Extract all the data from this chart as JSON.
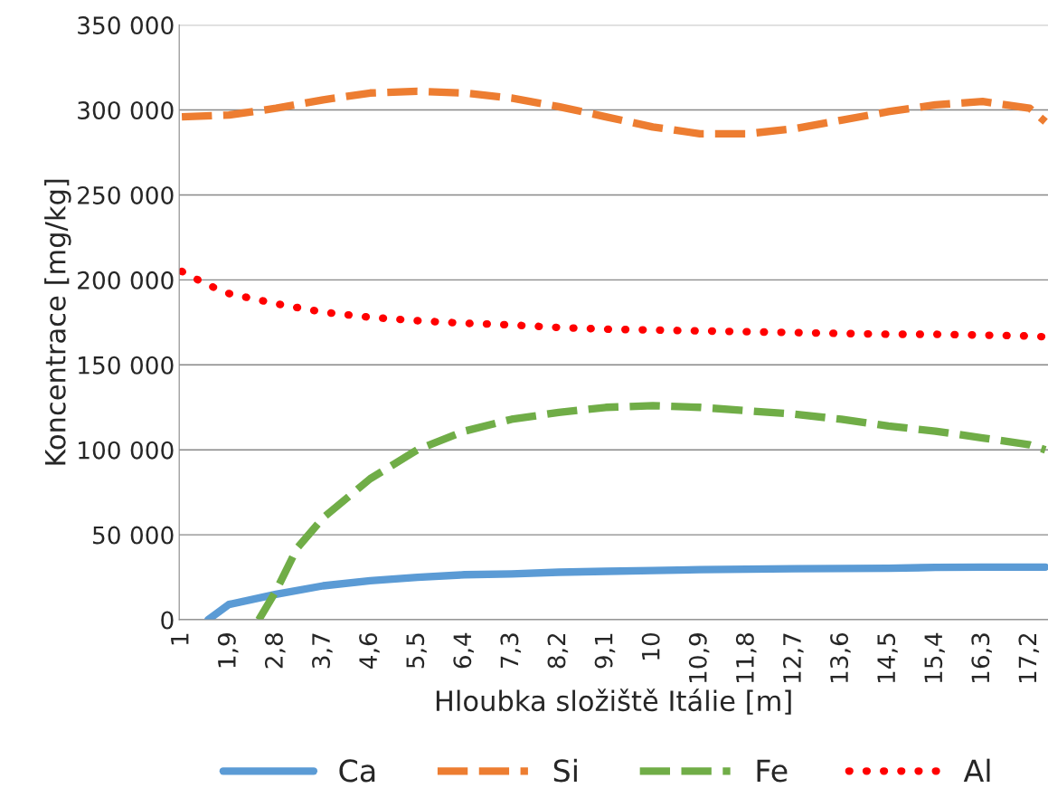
{
  "chart_data": {
    "type": "line",
    "xlabel": "Hloubka složiště Itálie [m]",
    "ylabel": "Koncentrace [mg/kg]",
    "xlim": [
      0.95,
      17.55
    ],
    "ylim": [
      0,
      350000
    ],
    "xticks": [
      {
        "value": 1,
        "label": "1"
      },
      {
        "value": 1.9,
        "label": "1,9"
      },
      {
        "value": 2.8,
        "label": "2,8"
      },
      {
        "value": 3.7,
        "label": "3,7"
      },
      {
        "value": 4.6,
        "label": "4,6"
      },
      {
        "value": 5.5,
        "label": "5,5"
      },
      {
        "value": 6.4,
        "label": "6,4"
      },
      {
        "value": 7.3,
        "label": "7,3"
      },
      {
        "value": 8.2,
        "label": "8,2"
      },
      {
        "value": 9.1,
        "label": "9,1"
      },
      {
        "value": 10,
        "label": "10"
      },
      {
        "value": 10.9,
        "label": "10,9"
      },
      {
        "value": 11.8,
        "label": "11,8"
      },
      {
        "value": 12.7,
        "label": "12,7"
      },
      {
        "value": 13.6,
        "label": "13,6"
      },
      {
        "value": 14.5,
        "label": "14,5"
      },
      {
        "value": 15.4,
        "label": "15,4"
      },
      {
        "value": 16.3,
        "label": "16,3"
      },
      {
        "value": 17.2,
        "label": "17,2"
      }
    ],
    "yticks": [
      {
        "value": 0,
        "label": "0"
      },
      {
        "value": 50000,
        "label": "50 000"
      },
      {
        "value": 100000,
        "label": "100 000"
      },
      {
        "value": 150000,
        "label": "150 000"
      },
      {
        "value": 200000,
        "label": "200 000"
      },
      {
        "value": 250000,
        "label": "250 000"
      },
      {
        "value": 300000,
        "label": "300 000"
      },
      {
        "value": 350000,
        "label": "350 000"
      }
    ],
    "grid": "y",
    "legend": "bottom",
    "marker": "none",
    "series": [
      {
        "name": "Ca",
        "color": "#5b9bd5",
        "line_style": "solid",
        "x": [
          1.5,
          1.9,
          2.8,
          3.7,
          4.6,
          5.5,
          6.4,
          7.3,
          8.2,
          9.1,
          10,
          10.9,
          11.8,
          12.7,
          13.6,
          14.5,
          15.4,
          16.3,
          17.2,
          17.5
        ],
        "values": [
          0,
          9000,
          15000,
          20000,
          23000,
          25000,
          26500,
          27000,
          28000,
          28500,
          29000,
          29500,
          29800,
          30000,
          30200,
          30300,
          30800,
          31000,
          31000,
          31000
        ]
      },
      {
        "name": "Si",
        "color": "#ed7d31",
        "line_style": "dashed",
        "x": [
          1,
          1.9,
          2.8,
          3.7,
          4.6,
          5.5,
          6.4,
          7.3,
          8.2,
          9.1,
          10,
          10.9,
          11.8,
          12.7,
          13.6,
          14.5,
          15.4,
          16.3,
          17.2,
          17.5
        ],
        "values": [
          296000,
          297000,
          301000,
          306000,
          310000,
          311000,
          310000,
          307000,
          302000,
          296000,
          290000,
          286000,
          286000,
          289000,
          294000,
          299000,
          303000,
          305000,
          301000,
          293000
        ]
      },
      {
        "name": "Fe",
        "color": "#70ad47",
        "line_style": "dashed",
        "x": [
          2.47,
          2.8,
          3.2,
          3.7,
          4.6,
          5.5,
          6.4,
          7.3,
          8.2,
          9.1,
          10,
          10.9,
          11.8,
          12.7,
          13.6,
          14.5,
          15.4,
          16.3,
          17.2,
          17.5
        ],
        "values": [
          0,
          17000,
          42000,
          60000,
          83000,
          100000,
          111000,
          118000,
          122000,
          125000,
          126000,
          125000,
          123000,
          121000,
          118000,
          114000,
          111000,
          107000,
          103000,
          100000
        ]
      },
      {
        "name": "Al",
        "color": "#ff0000",
        "line_style": "dotted",
        "x": [
          1,
          1.5,
          1.9,
          2.8,
          3.7,
          4.6,
          5.5,
          6.4,
          7.3,
          8.2,
          9.1,
          10,
          10.9,
          11.8,
          12.7,
          13.6,
          14.5,
          15.4,
          16.3,
          17.2,
          17.5
        ],
        "values": [
          205000,
          197000,
          192000,
          186000,
          181000,
          178000,
          176000,
          174500,
          173500,
          172000,
          171000,
          170500,
          170000,
          169500,
          169000,
          168500,
          168000,
          168000,
          167500,
          167000,
          166500
        ]
      }
    ]
  }
}
